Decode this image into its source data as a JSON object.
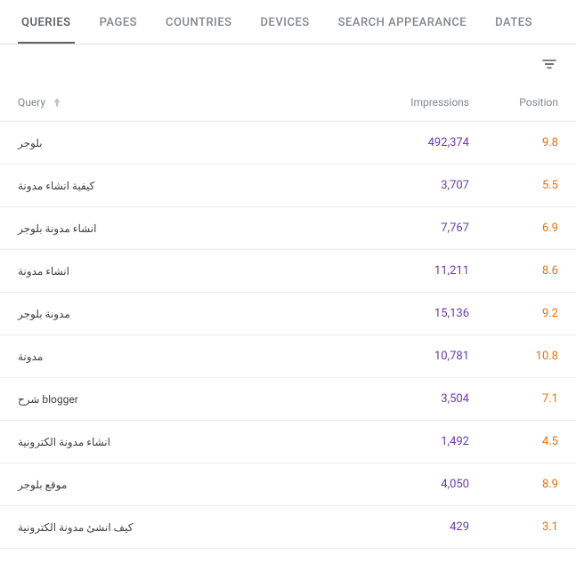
{
  "tabs": [
    {
      "label": "QUERIES",
      "active": true
    },
    {
      "label": "PAGES",
      "active": false
    },
    {
      "label": "COUNTRIES",
      "active": false
    },
    {
      "label": "DEVICES",
      "active": false
    },
    {
      "label": "SEARCH APPEARANCE",
      "active": false
    },
    {
      "label": "DATES",
      "active": false
    }
  ],
  "columns": {
    "query": "Query",
    "impressions": "Impressions",
    "position": "Position"
  },
  "colors": {
    "impressions": "#673ab7",
    "position": "#e8710a",
    "text": "#5f6368",
    "border": "#e8eaed"
  },
  "rows": [
    {
      "query": "بلوجر",
      "impressions": "492,374",
      "position": "9.8"
    },
    {
      "query": "كيفية انشاء مدونة",
      "impressions": "3,707",
      "position": "5.5"
    },
    {
      "query": "انشاء مدونة بلوجر",
      "impressions": "7,767",
      "position": "6.9"
    },
    {
      "query": "انشاء مدونة",
      "impressions": "11,211",
      "position": "8.6"
    },
    {
      "query": "مدونة بلوجر",
      "impressions": "15,136",
      "position": "9.2"
    },
    {
      "query": "مدونة",
      "impressions": "10,781",
      "position": "10.8"
    },
    {
      "query": "شرح blogger",
      "impressions": "3,504",
      "position": "7.1"
    },
    {
      "query": "انشاء مدونة الكترونية",
      "impressions": "1,492",
      "position": "4.5"
    },
    {
      "query": "موقع بلوجر",
      "impressions": "4,050",
      "position": "8.9"
    },
    {
      "query": "كيف انشئ مدونة الكترونية",
      "impressions": "429",
      "position": "3.1"
    }
  ]
}
